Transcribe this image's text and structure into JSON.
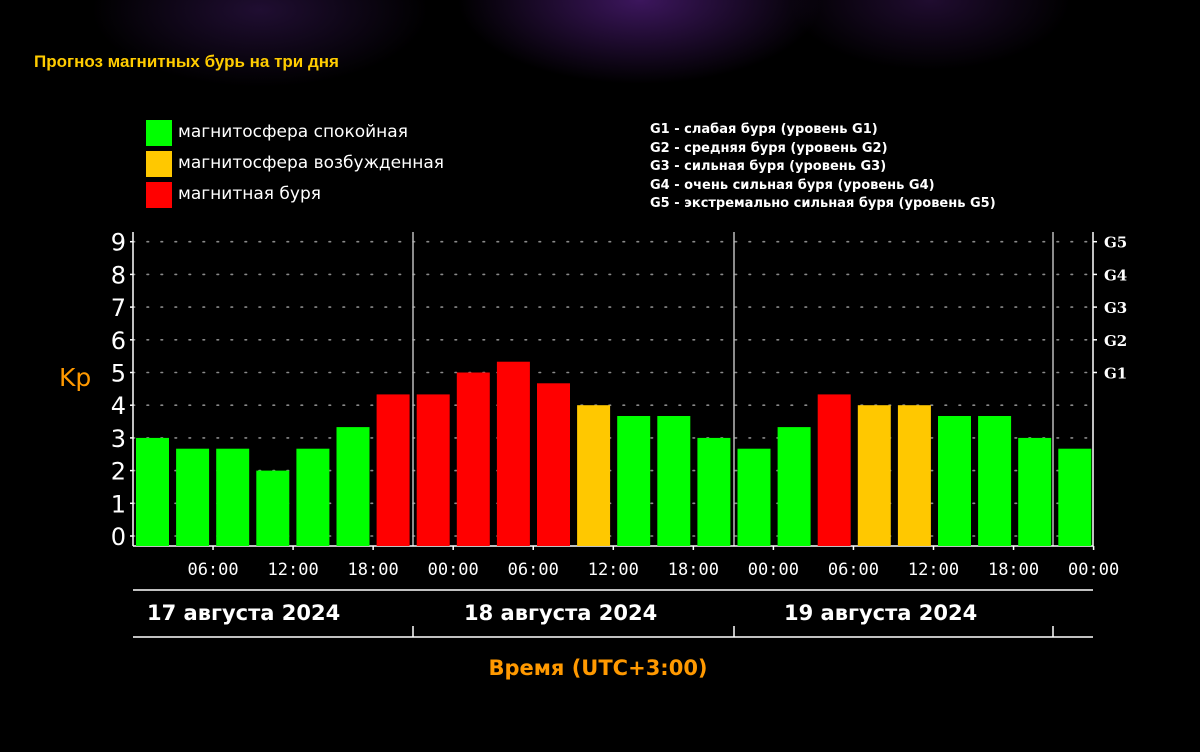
{
  "title": "Прогноз магнитных бурь на три дня",
  "legend": [
    {
      "label": "магнитосфера спокойная",
      "color": "#00ff00"
    },
    {
      "label": "магнитосфера возбужденная",
      "color": "#ffc800"
    },
    {
      "label": "магнитная буря",
      "color": "#ff0000"
    }
  ],
  "g_levels": [
    "G1 - слабая буря (уровень G1)",
    "G2 - средняя буря (уровень G2)",
    "G3 - сильная буря (уровень G3)",
    "G4 - очень сильная буря (уровень G4)",
    "G5 - экстремально сильная буря (уровень G5)"
  ],
  "colors": {
    "quiet": "#00ff00",
    "active": "#ffc800",
    "storm": "#ff0000",
    "axis_label": "#ff9900",
    "title": "#ffcc00"
  },
  "chart_data": {
    "type": "bar",
    "ylabel": "Kp",
    "xlabel": "Время (UTC+3:00)",
    "ylim": [
      0,
      9
    ],
    "y_ticks": [
      "0",
      "1",
      "2",
      "3",
      "4",
      "5",
      "6",
      "7",
      "8",
      "9"
    ],
    "right_ticks": [
      {
        "label": "G1",
        "kp": 5
      },
      {
        "label": "G2",
        "kp": 6
      },
      {
        "label": "G3",
        "kp": 7
      },
      {
        "label": "G4",
        "kp": 8
      },
      {
        "label": "G5",
        "kp": 9
      }
    ],
    "x_tick_labels": [
      "06:00",
      "12:00",
      "18:00",
      "00:00",
      "06:00",
      "12:00",
      "18:00",
      "00:00",
      "06:00",
      "12:00",
      "18:00",
      "00:00"
    ],
    "days": [
      "17 августа 2024",
      "18 августа 2024",
      "19 августа 2024"
    ],
    "grid": true,
    "values": [
      3.0,
      2.67,
      2.67,
      2.0,
      2.67,
      3.33,
      4.33,
      4.33,
      5.0,
      5.33,
      4.67,
      4.0,
      3.67,
      3.67,
      3.0,
      2.67,
      3.33,
      4.33,
      4.0,
      4.0,
      3.67,
      3.67,
      3.0,
      2.67
    ],
    "levels": [
      "quiet",
      "quiet",
      "quiet",
      "quiet",
      "quiet",
      "quiet",
      "storm",
      "storm",
      "storm",
      "storm",
      "storm",
      "active",
      "quiet",
      "quiet",
      "quiet",
      "quiet",
      "quiet",
      "storm",
      "active",
      "active",
      "quiet",
      "quiet",
      "quiet",
      "quiet"
    ]
  }
}
